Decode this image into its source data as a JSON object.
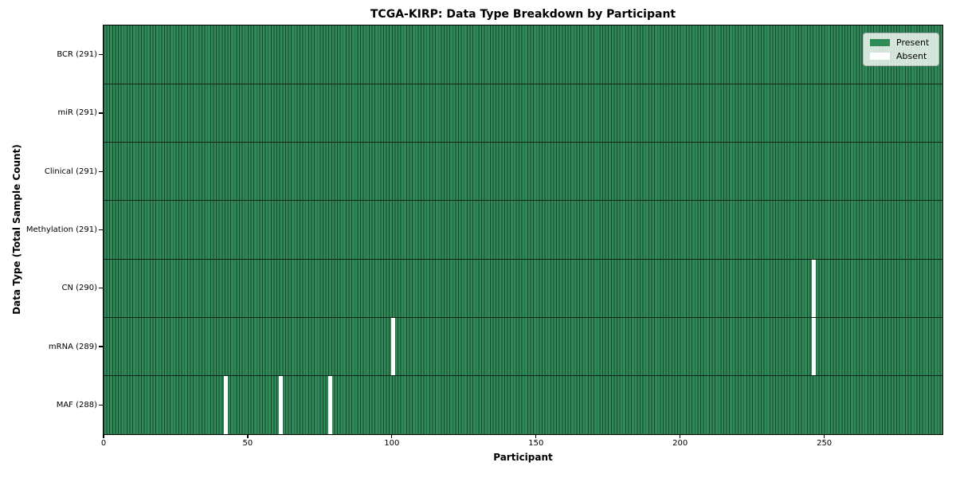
{
  "chart_data": {
    "type": "heatmap",
    "title": "TCGA-KIRP: Data Type Breakdown by Participant",
    "xlabel": "Participant",
    "ylabel": "Data Type (Total Sample Count)",
    "n_participants": 291,
    "xlim": [
      0,
      291
    ],
    "x_tick_values": [
      0,
      50,
      100,
      150,
      200,
      250
    ],
    "x_tick_labels": [
      "0",
      "50",
      "100",
      "150",
      "200",
      "250"
    ],
    "grid": false,
    "legend_position": "upper right",
    "legend": {
      "items": [
        {
          "label": "Present",
          "color": "#2e8b57"
        },
        {
          "label": "Absent",
          "color": "#ffffff"
        }
      ]
    },
    "colors": {
      "present": "#2e8b57",
      "absent": "#ffffff",
      "bar_edge": "#1e4530",
      "row_separator": "#0d2418",
      "axis": "#000000",
      "background": "#ffffff"
    },
    "rows": [
      {
        "data_type": "BCR",
        "label": "BCR (291)",
        "present_count": 291,
        "absent_participants": []
      },
      {
        "data_type": "miR",
        "label": "miR (291)",
        "present_count": 291,
        "absent_participants": []
      },
      {
        "data_type": "Clinical",
        "label": "Clinical (291)",
        "present_count": 291,
        "absent_participants": []
      },
      {
        "data_type": "Methylation",
        "label": "Methylation (291)",
        "present_count": 291,
        "absent_participants": []
      },
      {
        "data_type": "CN",
        "label": "CN (290)",
        "present_count": 290,
        "absent_participants": [
          246
        ]
      },
      {
        "data_type": "mRNA",
        "label": "mRNA (289)",
        "present_count": 289,
        "absent_participants": [
          100,
          246
        ]
      },
      {
        "data_type": "MAF",
        "label": "MAF (288)",
        "present_count": 288,
        "absent_participants": [
          42,
          61,
          78
        ]
      }
    ]
  }
}
